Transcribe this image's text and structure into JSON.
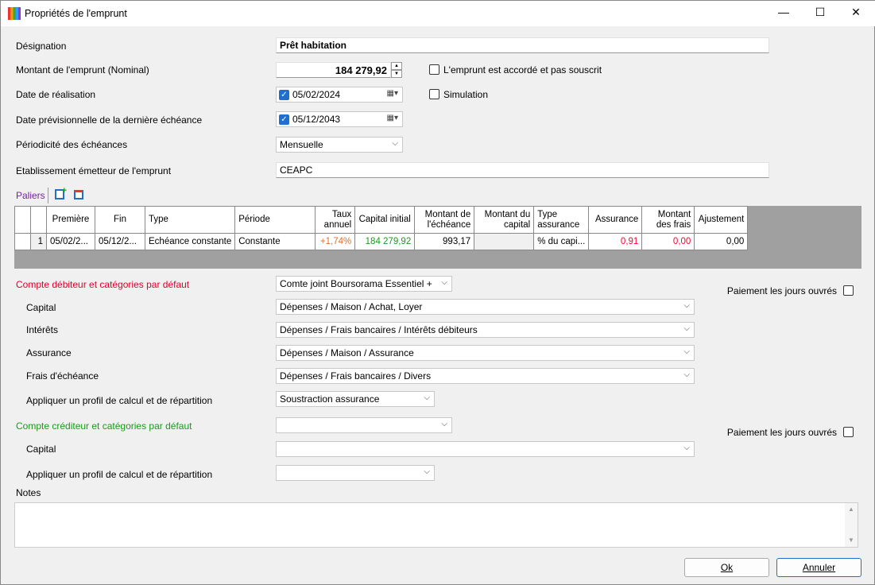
{
  "window": {
    "title": "Propriétés de l'emprunt",
    "minimize": "—",
    "maximize": "☐",
    "close": "✕"
  },
  "form": {
    "designation_label": "Désignation",
    "designation": "Prêt habitation",
    "montant_label": "Montant de l'emprunt (Nominal)",
    "montant": "184 279,92",
    "accorde_label": "L'emprunt est accordé et pas souscrit",
    "accorde": false,
    "date_real_label": "Date de réalisation",
    "date_real": "05/02/2024",
    "simulation_label": "Simulation",
    "simulation": false,
    "date_last_label": "Date prévisionnelle de la dernière échéance",
    "date_last": "05/12/2043",
    "periodicite_label": "Périodicité des échéances",
    "periodicite": "Mensuelle",
    "etab_label": "Etablissement émetteur de l'emprunt",
    "etab": "CEAPC"
  },
  "paliers": {
    "label": "Paliers",
    "headers": [
      "",
      "",
      "Première",
      "Fin",
      "Type",
      "Période",
      "Taux annuel",
      "Capital initial",
      "Montant de l'échéance",
      "Montant du capital",
      "Type assurance",
      "Assurance",
      "Montant des frais",
      "Ajustement"
    ],
    "rows": [
      [
        "",
        "1",
        "05/02/2...",
        "05/12/2...",
        "Echéance constante",
        "Constante",
        "+1,74%",
        "184 279,92",
        "993,17",
        "",
        "% du capi...",
        "0,91",
        "0,00",
        "0,00"
      ]
    ]
  },
  "debit": {
    "label": "Compte débiteur et catégories par défaut",
    "account": "Comte joint Boursorama Essentiel +",
    "jours_label": "Paiement les jours ouvrés",
    "capital_label": "Capital",
    "capital": "Dépenses / Maison / Achat, Loyer",
    "interets_label": "Intérêts",
    "interets": "Dépenses / Frais bancaires / Intérêts débiteurs",
    "assurance_label": "Assurance",
    "assurance": "Dépenses / Maison / Assurance",
    "frais_label": "Frais d'échéance",
    "frais": "Dépenses / Frais bancaires / Divers",
    "profil_label": "Appliquer un profil de calcul et de répartition",
    "profil": "Soustraction assurance"
  },
  "credit": {
    "label": "Compte créditeur et catégories par défaut",
    "account": "",
    "jours_label": "Paiement les jours ouvrés",
    "capital_label": "Capital",
    "capital": "",
    "profil_label": "Appliquer un profil de calcul et de répartition",
    "profil": ""
  },
  "notes": {
    "label": "Notes",
    "value": ""
  },
  "buttons": {
    "ok": "Ok",
    "cancel": "Annuler"
  },
  "colors": {
    "debit": "#e0002a",
    "credit": "#1a9a1a",
    "taux": "#e07030",
    "capital": "#1a9a1a",
    "red": "#ff0030",
    "paliers": "#7a1fa0"
  }
}
